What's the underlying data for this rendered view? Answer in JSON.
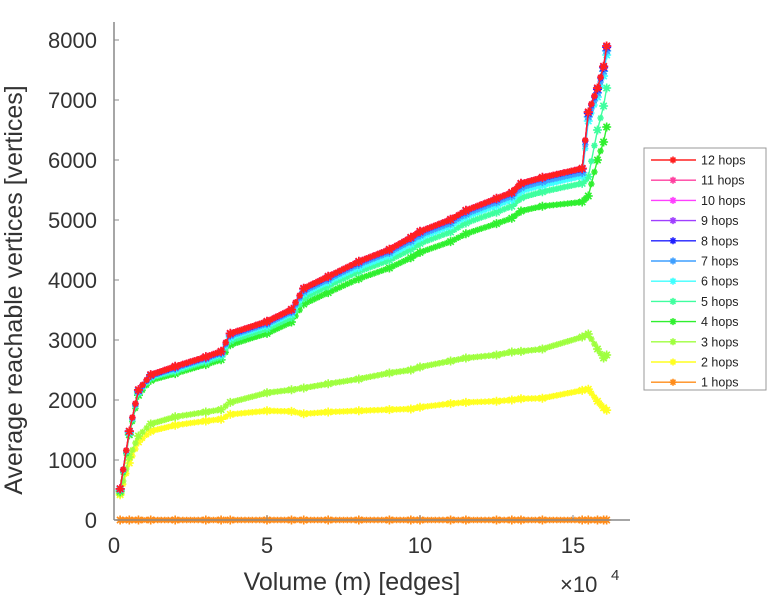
{
  "chart_data": {
    "type": "line",
    "title": "",
    "xlabel": "Volume (m) [edges]",
    "ylabel": "Average reachable vertices [vertices]",
    "x_multiplier_label": "×10",
    "x_multiplier_exponent": "4",
    "xlim": [
      0,
      16.9
    ],
    "ylim": [
      0,
      8300
    ],
    "xticks": [
      0,
      5,
      10,
      15
    ],
    "xtick_labels": [
      "0",
      "5",
      "10",
      "15"
    ],
    "yticks": [
      0,
      1000,
      2000,
      3000,
      4000,
      5000,
      6000,
      7000,
      8000
    ],
    "ytick_labels": [
      "0",
      "1000",
      "2000",
      "3000",
      "4000",
      "5000",
      "6000",
      "7000",
      "8000"
    ],
    "grid": false,
    "legend_position": "right",
    "x": [
      0.2,
      0.5,
      0.8,
      1.2,
      2.0,
      3.0,
      3.5,
      3.8,
      5.0,
      5.8,
      6.2,
      7.0,
      8.0,
      9.0,
      9.7,
      10.0,
      11.0,
      11.5,
      12.5,
      13.0,
      13.3,
      14.0,
      15.3,
      15.5,
      15.8,
      16.0,
      16.1
    ],
    "series": [
      {
        "name": "12 hops",
        "color": "#ff2020",
        "values": [
          520,
          1480,
          2170,
          2420,
          2560,
          2720,
          2810,
          3110,
          3310,
          3510,
          3860,
          4060,
          4310,
          4510,
          4710,
          4810,
          5010,
          5160,
          5360,
          5460,
          5610,
          5710,
          5860,
          6800,
          7200,
          7560,
          7900
        ]
      },
      {
        "name": "11 hops",
        "color": "#ff3f9f",
        "values": [
          520,
          1480,
          2170,
          2420,
          2560,
          2720,
          2810,
          3110,
          3310,
          3510,
          3860,
          4060,
          4310,
          4510,
          4710,
          4810,
          5010,
          5160,
          5360,
          5460,
          5610,
          5710,
          5860,
          6800,
          7200,
          7560,
          7900
        ]
      },
      {
        "name": "10 hops",
        "color": "#ff3fff",
        "values": [
          520,
          1480,
          2170,
          2420,
          2560,
          2720,
          2810,
          3110,
          3310,
          3510,
          3860,
          4060,
          4310,
          4510,
          4710,
          4810,
          5010,
          5160,
          5360,
          5460,
          5610,
          5710,
          5860,
          6800,
          7200,
          7560,
          7900
        ]
      },
      {
        "name": "9 hops",
        "color": "#9f3fff",
        "values": [
          520,
          1480,
          2170,
          2420,
          2560,
          2720,
          2810,
          3110,
          3310,
          3510,
          3860,
          4060,
          4310,
          4510,
          4710,
          4810,
          5010,
          5160,
          5360,
          5460,
          5610,
          5710,
          5860,
          6800,
          7200,
          7560,
          7900
        ]
      },
      {
        "name": "8 hops",
        "color": "#2020ff",
        "values": [
          520,
          1480,
          2160,
          2410,
          2550,
          2710,
          2800,
          3100,
          3300,
          3500,
          3850,
          4050,
          4300,
          4500,
          4700,
          4800,
          5000,
          5150,
          5350,
          5450,
          5600,
          5700,
          5850,
          6780,
          7180,
          7540,
          7880
        ]
      },
      {
        "name": "7 hops",
        "color": "#3f9fff",
        "values": [
          510,
          1470,
          2150,
          2400,
          2530,
          2690,
          2780,
          3070,
          3270,
          3470,
          3810,
          4010,
          4260,
          4460,
          4650,
          4750,
          4950,
          5100,
          5300,
          5400,
          5540,
          5640,
          5790,
          6720,
          7120,
          7480,
          7820
        ]
      },
      {
        "name": "6 hops",
        "color": "#3fffff",
        "values": [
          510,
          1460,
          2140,
          2390,
          2510,
          2670,
          2760,
          3040,
          3240,
          3440,
          3770,
          3970,
          4210,
          4410,
          4600,
          4700,
          4900,
          5050,
          5240,
          5340,
          5480,
          5580,
          5730,
          6650,
          7050,
          7400,
          7750
        ]
      },
      {
        "name": "5 hops",
        "color": "#3fff9f",
        "values": [
          500,
          1450,
          2120,
          2370,
          2480,
          2640,
          2720,
          2990,
          3190,
          3380,
          3700,
          3900,
          4140,
          4330,
          4510,
          4610,
          4800,
          4950,
          5130,
          5230,
          5370,
          5470,
          5610,
          5720,
          6500,
          6900,
          7200
        ]
      },
      {
        "name": "4 hops",
        "color": "#2ff02f",
        "values": [
          480,
          1420,
          2080,
          2330,
          2440,
          2590,
          2670,
          2920,
          3110,
          3300,
          3600,
          3790,
          4020,
          4200,
          4370,
          4460,
          4640,
          4770,
          4940,
          5030,
          5150,
          5230,
          5300,
          5400,
          6000,
          6300,
          6550
        ]
      },
      {
        "name": "3 hops",
        "color": "#9fff3f",
        "values": [
          450,
          1050,
          1400,
          1600,
          1720,
          1800,
          1840,
          1960,
          2120,
          2170,
          2200,
          2270,
          2350,
          2450,
          2500,
          2550,
          2650,
          2700,
          2750,
          2800,
          2810,
          2850,
          3050,
          3100,
          2850,
          2700,
          2750
        ]
      },
      {
        "name": "2 hops",
        "color": "#ffff20",
        "values": [
          420,
          950,
          1300,
          1480,
          1580,
          1650,
          1680,
          1760,
          1820,
          1810,
          1770,
          1800,
          1820,
          1840,
          1850,
          1880,
          1940,
          1960,
          1980,
          2000,
          2020,
          2030,
          2160,
          2180,
          1980,
          1870,
          1830
        ]
      },
      {
        "name": "1 hops",
        "color": "#ff8c1a",
        "values": [
          0,
          0,
          0,
          0,
          0,
          0,
          0,
          0,
          0,
          0,
          0,
          0,
          0,
          0,
          0,
          0,
          0,
          0,
          0,
          0,
          0,
          0,
          0,
          0,
          0,
          0,
          0
        ]
      }
    ]
  }
}
